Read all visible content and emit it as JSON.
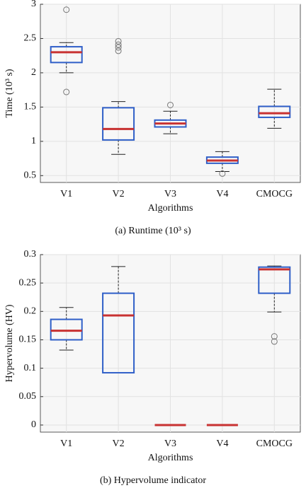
{
  "chart_data": [
    {
      "type": "box",
      "caption": "(a) Runtime (10³ s)",
      "xlabel": "Algorithms",
      "ylabel": "Time (10³ s)",
      "categories": [
        "V1",
        "V2",
        "V3",
        "V4",
        "CMOCG"
      ],
      "boxes": [
        {
          "whisker_low": 2.0,
          "q1": 2.15,
          "median": 2.3,
          "q3": 2.38,
          "whisker_high": 2.44,
          "outliers": [
            2.92,
            1.72
          ]
        },
        {
          "whisker_low": 0.81,
          "q1": 1.02,
          "median": 1.18,
          "q3": 1.49,
          "whisker_high": 1.58,
          "outliers": [
            2.46,
            2.41,
            2.37,
            2.32
          ]
        },
        {
          "whisker_low": 1.11,
          "q1": 1.21,
          "median": 1.26,
          "q3": 1.31,
          "whisker_high": 1.44,
          "outliers": [
            1.53
          ]
        },
        {
          "whisker_low": 0.56,
          "q1": 0.68,
          "median": 0.72,
          "q3": 0.77,
          "whisker_high": 0.85,
          "outliers": [
            0.53
          ]
        },
        {
          "whisker_low": 1.19,
          "q1": 1.35,
          "median": 1.41,
          "q3": 1.51,
          "whisker_high": 1.76,
          "outliers": []
        }
      ],
      "ylim": [
        0.4,
        3
      ],
      "yticks": [
        0.5,
        1,
        1.5,
        2,
        2.5,
        3
      ],
      "grid": true,
      "box_color": "#2f5fc8",
      "median_color": "#c83232",
      "whisker_color": "#222222",
      "outlier_color": "#777777"
    },
    {
      "type": "box",
      "caption": "(b) Hypervolume indicator",
      "xlabel": "Algorithms",
      "ylabel": "Hypervolume (HV)",
      "categories": [
        "V1",
        "V2",
        "V3",
        "V4",
        "CMOCG"
      ],
      "boxes": [
        {
          "whisker_low": 0.132,
          "q1": 0.15,
          "median": 0.166,
          "q3": 0.186,
          "whisker_high": 0.207,
          "outliers": []
        },
        {
          "whisker_low": 0.092,
          "q1": 0.092,
          "median": 0.193,
          "q3": 0.232,
          "whisker_high": 0.279,
          "outliers": []
        },
        {
          "whisker_low": 0,
          "q1": 0,
          "median": 0,
          "q3": 0,
          "whisker_high": 0,
          "outliers": []
        },
        {
          "whisker_low": 0,
          "q1": 0,
          "median": 0,
          "q3": 0,
          "whisker_high": 0,
          "outliers": []
        },
        {
          "whisker_low": 0.199,
          "q1": 0.232,
          "median": 0.274,
          "q3": 0.278,
          "whisker_high": 0.28,
          "outliers": [
            0.156,
            0.147
          ]
        }
      ],
      "ylim": [
        -0.0125,
        0.3
      ],
      "yticks": [
        0,
        0.05,
        0.1,
        0.15,
        0.2,
        0.25,
        0.3
      ],
      "grid": true,
      "box_color": "#2f5fc8",
      "median_color": "#c83232",
      "whisker_color": "#222222",
      "outlier_color": "#777777"
    }
  ]
}
